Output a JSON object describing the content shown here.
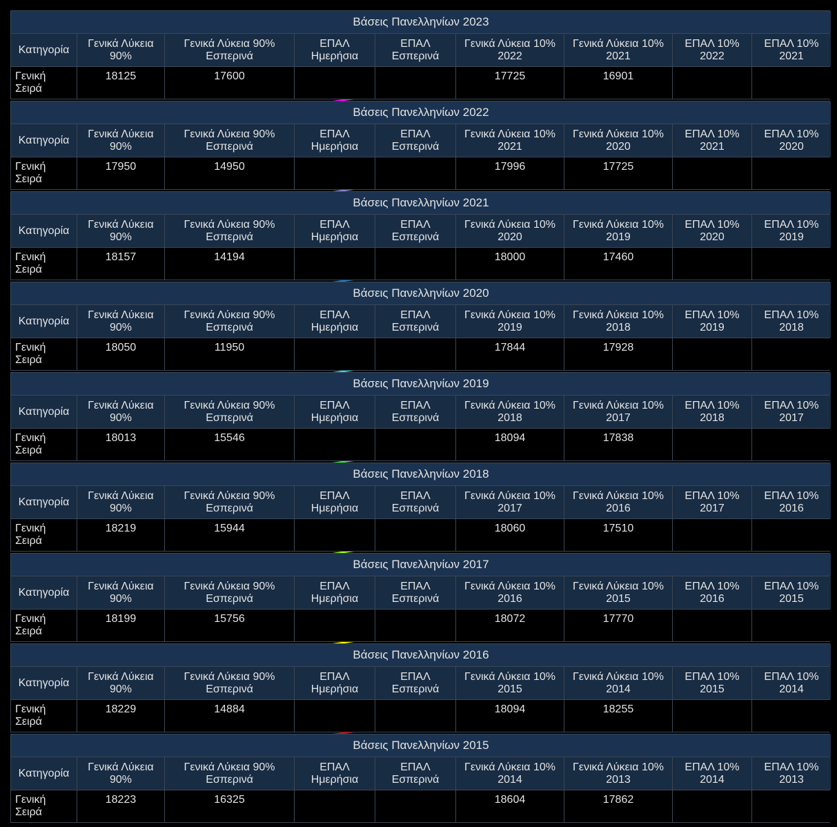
{
  "tables": [
    {
      "title": "Βάσεις Πανελληνίων 2023",
      "header": [
        "Κατηγορία",
        "Γενικά Λύκεια 90%",
        "Γενικά Λύκεια 90% Εσπερινά",
        "ΕΠΑΛ Ημερήσια",
        "ΕΠΑΛ Εσπερινά",
        "Γενικά Λύκεια 10% 2022",
        "Γενικά Λύκεια 10% 2021",
        "ΕΠΑΛ 10% 2022",
        "ΕΠΑΛ 10% 2021"
      ],
      "row": [
        "Γενική Σειρά",
        18125,
        17600,
        null,
        null,
        17725,
        16901,
        null,
        null
      ]
    },
    {
      "title": "Βάσεις Πανελληνίων 2022",
      "header": [
        "Κατηγορία",
        "Γενικά Λύκεια 90%",
        "Γενικά Λύκεια 90% Εσπερινά",
        "ΕΠΑΛ Ημερήσια",
        "ΕΠΑΛ Εσπερινά",
        "Γενικά Λύκεια 10% 2021",
        "Γενικά Λύκεια 10% 2020",
        "ΕΠΑΛ 10% 2021",
        "ΕΠΑΛ 10% 2020"
      ],
      "row": [
        "Γενική Σειρά",
        17950,
        14950,
        null,
        null,
        17996,
        17725,
        null,
        null
      ]
    },
    {
      "title": "Βάσεις Πανελληνίων 2021",
      "header": [
        "Κατηγορία",
        "Γενικά Λύκεια 90%",
        "Γενικά Λύκεια 90% Εσπερινά",
        "ΕΠΑΛ Ημερήσια",
        "ΕΠΑΛ Εσπερινά",
        "Γενικά Λύκεια 10% 2020",
        "Γενικά Λύκεια 10% 2019",
        "ΕΠΑΛ 10% 2020",
        "ΕΠΑΛ 10% 2019"
      ],
      "row": [
        "Γενική Σειρά",
        18157,
        14194,
        null,
        null,
        18000,
        17460,
        null,
        null
      ]
    },
    {
      "title": "Βάσεις Πανελληνίων 2020",
      "header": [
        "Κατηγορία",
        "Γενικά Λύκεια 90%",
        "Γενικά Λύκεια 90% Εσπερινά",
        "ΕΠΑΛ Ημερήσια",
        "ΕΠΑΛ Εσπερινά",
        "Γενικά Λύκεια 10% 2019",
        "Γενικά Λύκεια 10% 2018",
        "ΕΠΑΛ 10% 2019",
        "ΕΠΑΛ 10% 2018"
      ],
      "row": [
        "Γενική Σειρά",
        18050,
        11950,
        null,
        null,
        17844,
        17928,
        null,
        null
      ]
    },
    {
      "title": "Βάσεις Πανελληνίων 2019",
      "header": [
        "Κατηγορία",
        "Γενικά Λύκεια 90%",
        "Γενικά Λύκεια 90% Εσπερινά",
        "ΕΠΑΛ Ημερήσια",
        "ΕΠΑΛ Εσπερινά",
        "Γενικά Λύκεια 10% 2018",
        "Γενικά Λύκεια 10% 2017",
        "ΕΠΑΛ 10% 2018",
        "ΕΠΑΛ 10% 2017"
      ],
      "row": [
        "Γενική Σειρά",
        18013,
        15546,
        null,
        null,
        18094,
        17838,
        null,
        null
      ]
    },
    {
      "title": "Βάσεις Πανελληνίων 2018",
      "header": [
        "Κατηγορία",
        "Γενικά Λύκεια 90%",
        "Γενικά Λύκεια 90% Εσπερινά",
        "ΕΠΑΛ Ημερήσια",
        "ΕΠΑΛ Εσπερινά",
        "Γενικά Λύκεια 10% 2017",
        "Γενικά Λύκεια 10% 2016",
        "ΕΠΑΛ 10% 2017",
        "ΕΠΑΛ 10% 2016"
      ],
      "row": [
        "Γενική Σειρά",
        18219,
        15944,
        null,
        null,
        18060,
        17510,
        null,
        null
      ]
    },
    {
      "title": "Βάσεις Πανελληνίων 2017",
      "header": [
        "Κατηγορία",
        "Γενικά Λύκεια 90%",
        "Γενικά Λύκεια 90% Εσπερινά",
        "ΕΠΑΛ Ημερήσια",
        "ΕΠΑΛ Εσπερινά",
        "Γενικά Λύκεια 10% 2016",
        "Γενικά Λύκεια 10% 2015",
        "ΕΠΑΛ 10% 2016",
        "ΕΠΑΛ 10% 2015"
      ],
      "row": [
        "Γενική Σειρά",
        18199,
        15756,
        null,
        null,
        18072,
        17770,
        null,
        null
      ]
    },
    {
      "title": "Βάσεις Πανελληνίων 2016",
      "header": [
        "Κατηγορία",
        "Γενικά Λύκεια 90%",
        "Γενικά Λύκεια 90% Εσπερινά",
        "ΕΠΑΛ Ημερήσια",
        "ΕΠΑΛ Εσπερινά",
        "Γενικά Λύκεια 10% 2015",
        "Γενικά Λύκεια 10% 2014",
        "ΕΠΑΛ 10% 2015",
        "ΕΠΑΛ 10% 2014"
      ],
      "row": [
        "Γενική Σειρά",
        18229,
        14884,
        null,
        null,
        18094,
        18255,
        null,
        null
      ]
    },
    {
      "title": "Βάσεις Πανελληνίων 2015",
      "header": [
        "Κατηγορία",
        "Γενικά Λύκεια 90%",
        "Γενικά Λύκεια 90% Εσπερινά",
        "ΕΠΑΛ Ημερήσια",
        "ΕΠΑΛ Εσπερινά",
        "Γενικά Λύκεια 10% 2014",
        "Γενικά Λύκεια 10% 2013",
        "ΕΠΑΛ 10% 2014",
        "ΕΠΑΛ 10% 2013"
      ],
      "row": [
        "Γενική Σειρά",
        18223,
        16325,
        null,
        null,
        18604,
        17862,
        null,
        null
      ]
    }
  ]
}
